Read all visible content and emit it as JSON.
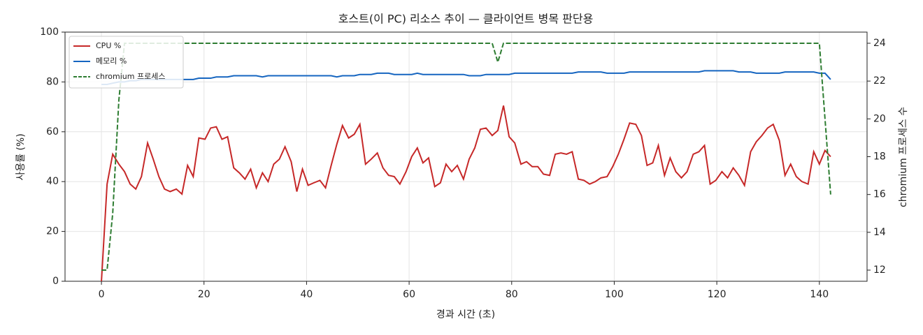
{
  "chart_data": {
    "type": "line",
    "title": "호스트(이 PC) 리소스 추이 — 클라이언트 병목 판단용",
    "xlabel": "경과 시간 (초)",
    "ylabel": "사용률 (%)",
    "y2label": "chromium 프로세스 수",
    "x": [
      0,
      1.1,
      2.2,
      3.4,
      4.5,
      5.6,
      6.7,
      7.8,
      9.0,
      10.1,
      11.2,
      12.3,
      13.4,
      14.6,
      15.7,
      16.8,
      17.9,
      19.0,
      20.2,
      21.3,
      22.4,
      23.5,
      24.6,
      25.8,
      26.9,
      28.0,
      29.1,
      30.2,
      31.4,
      32.5,
      33.6,
      34.7,
      35.8,
      37.0,
      38.1,
      39.2,
      40.3,
      41.4,
      42.6,
      43.7,
      44.8,
      45.9,
      47.0,
      48.2,
      49.3,
      50.4,
      51.5,
      52.6,
      53.8,
      54.9,
      56.0,
      57.1,
      58.2,
      59.4,
      60.5,
      61.6,
      62.7,
      63.8,
      65.0,
      66.1,
      67.2,
      68.3,
      69.4,
      70.6,
      71.7,
      72.8,
      73.9,
      75.0,
      76.2,
      77.3,
      78.4,
      79.5,
      80.6,
      81.8,
      82.9,
      84.0,
      85.1,
      86.2,
      87.4,
      88.5,
      89.6,
      90.7,
      91.8,
      93.0,
      94.1,
      95.2,
      96.3,
      97.4,
      98.6,
      99.7,
      100.8,
      101.9,
      103.0,
      104.2,
      105.3,
      106.4,
      107.5,
      108.6,
      109.8,
      110.9,
      112.0,
      113.1,
      114.2,
      115.4,
      116.5,
      117.6,
      118.7,
      119.8,
      121.0,
      122.1,
      123.2,
      124.3,
      125.4,
      126.6,
      127.7,
      128.8,
      129.9,
      131.0,
      132.2,
      133.3,
      134.4,
      135.5,
      136.6,
      137.8,
      138.9,
      140.0,
      141.1,
      142.2
    ],
    "series": [
      {
        "name": "CPU %",
        "color": "#c62828",
        "linestyle": "solid",
        "axis": "y",
        "values": [
          0,
          39,
          51,
          47,
          44,
          39,
          37,
          42,
          55.5,
          49,
          42,
          37,
          36,
          37,
          35,
          46.5,
          42,
          57.5,
          57,
          61.5,
          62,
          57,
          58,
          45.5,
          43.5,
          41,
          45,
          37.5,
          43.5,
          40,
          47,
          49,
          54,
          48,
          36,
          45,
          38.5,
          39.5,
          40.5,
          37.5,
          46.5,
          55,
          62.5,
          57.5,
          59,
          63,
          47,
          49,
          51.5,
          45.5,
          42.5,
          42,
          39,
          44,
          50,
          53.5,
          47.5,
          49.5,
          38,
          39.5,
          47,
          44,
          46.5,
          41,
          49,
          53.5,
          61,
          61.5,
          58.5,
          60.5,
          70.5,
          58,
          55.5,
          47,
          48,
          46,
          46,
          43,
          42.5,
          51,
          51.5,
          51,
          52,
          41,
          40.5,
          39,
          40,
          41.5,
          42,
          46,
          51,
          57,
          63.5,
          63,
          58.5,
          46.5,
          47.5,
          54.5,
          42.5,
          49.5,
          44,
          41.5,
          44,
          51,
          52,
          54.5,
          39,
          40.5,
          44,
          41.5,
          45.5,
          42.5,
          38.5,
          52,
          56,
          58.5,
          61.5,
          63,
          56.5,
          42.5,
          47,
          42,
          40,
          39,
          52,
          47,
          52.5,
          50
        ]
      },
      {
        "name": "메모리 %",
        "color": "#1565c0",
        "linestyle": "solid",
        "axis": "y",
        "values": [
          79,
          79,
          79.5,
          80,
          80,
          80.5,
          80.5,
          81,
          81,
          81,
          81,
          81,
          81,
          81,
          81,
          81,
          81,
          81.5,
          81.5,
          81.5,
          82,
          82,
          82,
          82.5,
          82.5,
          82.5,
          82.5,
          82.5,
          82,
          82.5,
          82.5,
          82.5,
          82.5,
          82.5,
          82.5,
          82.5,
          82.5,
          82.5,
          82.5,
          82.5,
          82.5,
          82,
          82.5,
          82.5,
          82.5,
          83,
          83,
          83,
          83.5,
          83.5,
          83.5,
          83,
          83,
          83,
          83,
          83.5,
          83,
          83,
          83,
          83,
          83,
          83,
          83,
          83,
          82.5,
          82.5,
          82.5,
          83,
          83,
          83,
          83,
          83,
          83.5,
          83.5,
          83.5,
          83.5,
          83.5,
          83.5,
          83.5,
          83.5,
          83.5,
          83.5,
          83.5,
          84,
          84,
          84,
          84,
          84,
          83.5,
          83.5,
          83.5,
          83.5,
          84,
          84,
          84,
          84,
          84,
          84,
          84,
          84,
          84,
          84,
          84,
          84,
          84,
          84.5,
          84.5,
          84.5,
          84.5,
          84.5,
          84.5,
          84,
          84,
          84,
          83.5,
          83.5,
          83.5,
          83.5,
          83.5,
          84,
          84,
          84,
          84,
          84,
          84,
          83.5,
          83.5,
          81
        ]
      },
      {
        "name": "chromium 프로세스",
        "color": "#2e7d32",
        "linestyle": "dashed",
        "axis": "y2",
        "values": [
          12,
          12,
          15,
          21,
          24,
          24,
          24,
          24,
          24,
          24,
          24,
          24,
          24,
          24,
          24,
          24,
          24,
          24,
          24,
          24,
          24,
          24,
          24,
          24,
          24,
          24,
          24,
          24,
          24,
          24,
          24,
          24,
          24,
          24,
          24,
          24,
          24,
          24,
          24,
          24,
          24,
          24,
          24,
          24,
          24,
          24,
          24,
          24,
          24,
          24,
          24,
          24,
          24,
          24,
          24,
          24,
          24,
          24,
          24,
          24,
          24,
          24,
          24,
          24,
          24,
          24,
          24,
          24,
          24,
          23,
          24,
          24,
          24,
          24,
          24,
          24,
          24,
          24,
          24,
          24,
          24,
          24,
          24,
          24,
          24,
          24,
          24,
          24,
          24,
          24,
          24,
          24,
          24,
          24,
          24,
          24,
          24,
          24,
          24,
          24,
          24,
          24,
          24,
          24,
          24,
          24,
          24,
          24,
          24,
          24,
          24,
          24,
          24,
          24,
          24,
          24,
          24,
          24,
          24,
          24,
          24,
          24,
          24,
          24,
          24,
          24,
          20,
          16
        ]
      }
    ],
    "xlim": [
      -7.1,
      149.3
    ],
    "xticks": [
      0,
      20,
      40,
      60,
      80,
      100,
      120,
      140
    ],
    "ylim": [
      0,
      100
    ],
    "yticks": [
      0,
      20,
      40,
      60,
      80,
      100
    ],
    "y2lim": [
      11.41,
      24.59
    ],
    "y2ticks": [
      12,
      14,
      16,
      18,
      20,
      22,
      24
    ],
    "grid": true,
    "legend": "upper left"
  }
}
